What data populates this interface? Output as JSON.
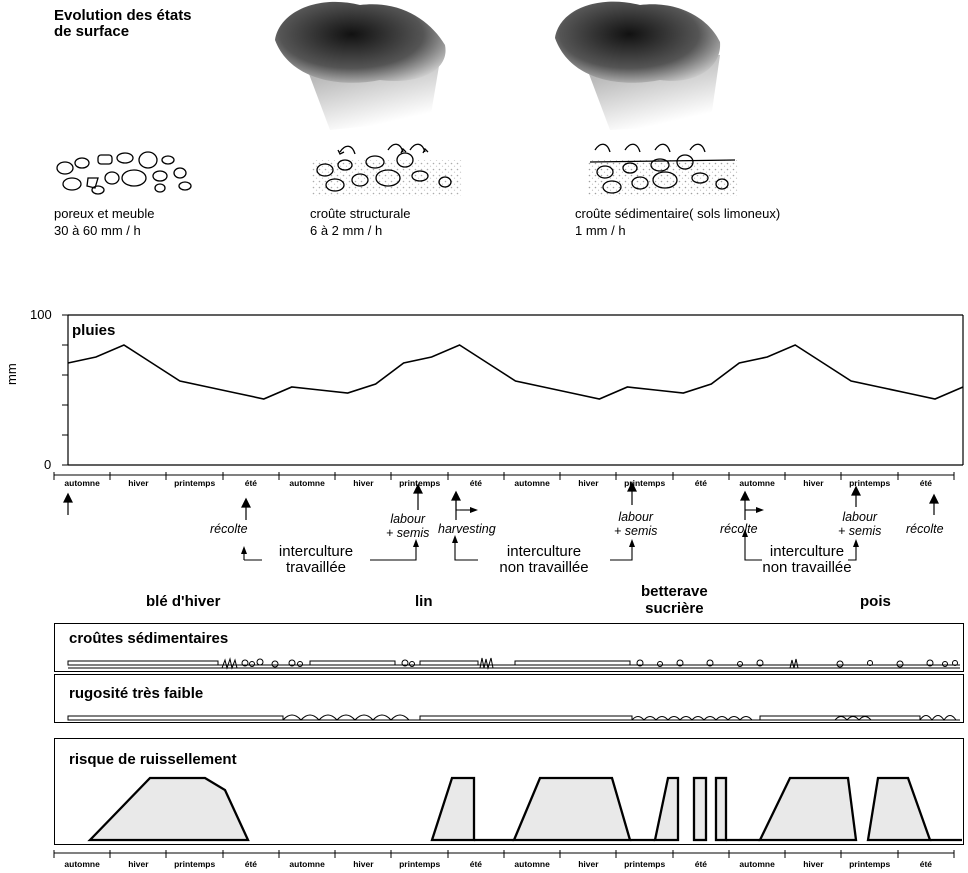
{
  "header": {
    "title_line1": "Evolution des états",
    "title_line2": "de surface"
  },
  "stages": [
    {
      "label": "poreux et meuble",
      "rate": "30 à 60 mm / h"
    },
    {
      "label": "croûte structurale",
      "rate": "6 à 2 mm / h"
    },
    {
      "label": "croûte sédimentaire( sols limoneux)",
      "rate": "1 mm / h"
    }
  ],
  "rain_chart": {
    "series_label": "pluies",
    "ylabel": "mm",
    "y_ticks": [
      "100",
      "0"
    ],
    "seasons": [
      "automne",
      "hiver",
      "printemps",
      "été",
      "automne",
      "hiver",
      "printemps",
      "été",
      "automne",
      "hiver",
      "printemps",
      "été",
      "automne",
      "hiver",
      "printemps",
      "été"
    ]
  },
  "events": {
    "recolte_1": "récolte",
    "labour_1_a": "labour",
    "labour_1_b": "+ semis",
    "harvesting": "harvesting",
    "labour_2_a": "labour",
    "labour_2_b": "+ semis",
    "recolte_2": "récolte",
    "labour_3_a": "labour",
    "labour_3_b": "+ semis",
    "recolte_3": "récolte"
  },
  "intercultures": [
    {
      "line1": "interculture",
      "line2": "travaillée"
    },
    {
      "line1": "interculture",
      "line2": "non travaillée"
    },
    {
      "line1": "interculture",
      "line2": "non travaillée"
    }
  ],
  "crops": [
    "blé d'hiver",
    "lin",
    "betterave",
    "sucrière",
    "pois"
  ],
  "panels": {
    "crusts": "croûtes sédimentaires",
    "roughness": "rugosité très faible",
    "risk": "risque de ruissellement"
  },
  "risk_seasons": [
    "automne",
    "hiver",
    "printemps",
    "été",
    "automne",
    "hiver",
    "printemps",
    "été",
    "automne",
    "hiver",
    "printemps",
    "été",
    "automne",
    "hiver",
    "printemps",
    "été"
  ],
  "chart_data": {
    "type": "line",
    "title": "pluies",
    "ylabel": "mm",
    "ylim": [
      0,
      100
    ],
    "categories": [
      "automne",
      "hiver",
      "printemps",
      "été",
      "automne",
      "hiver",
      "printemps",
      "été",
      "automne",
      "hiver",
      "printemps",
      "été",
      "automne",
      "hiver",
      "printemps",
      "été"
    ],
    "x": [
      0,
      0.5,
      1,
      1.5,
      2,
      2.5,
      3,
      3.5,
      4,
      4.5,
      5,
      5.5,
      6,
      6.5,
      7,
      7.5,
      8,
      8.5,
      9,
      9.5,
      10,
      10.5,
      11,
      11.5,
      12,
      12.5,
      13,
      13.5,
      14,
      14.5,
      15,
      15.5,
      16
    ],
    "values": [
      68,
      72,
      80,
      68,
      56,
      52,
      48,
      44,
      52,
      50,
      48,
      54,
      68,
      72,
      80,
      68,
      56,
      52,
      48,
      44,
      52,
      50,
      48,
      54,
      68,
      72,
      80,
      68,
      56,
      52,
      48,
      44,
      52
    ]
  }
}
